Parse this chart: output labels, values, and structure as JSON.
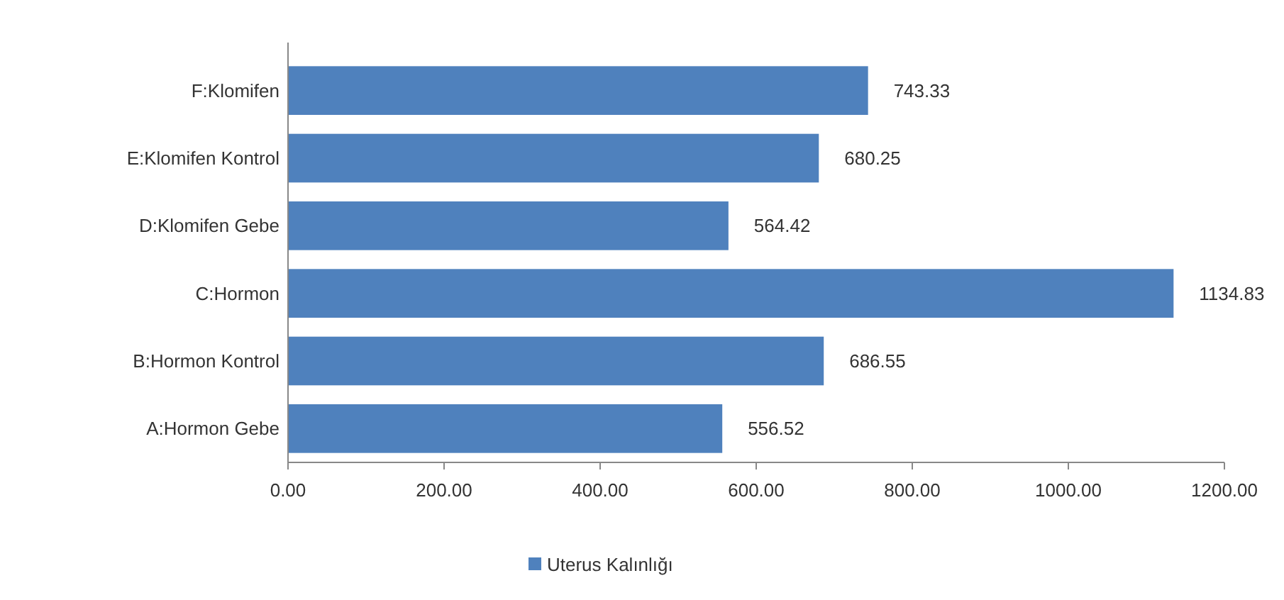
{
  "chart_data": {
    "type": "bar",
    "orientation": "horizontal",
    "categories": [
      "F:Klomifen",
      "E:Klomifen Kontrol",
      "D:Klomifen Gebe",
      "C:Hormon",
      "B:Hormon Kontrol",
      "A:Hormon Gebe"
    ],
    "series": [
      {
        "name": "Uterus Kalınlığı",
        "color": "#4f81bd",
        "values": [
          743.33,
          680.25,
          564.42,
          1134.83,
          686.55,
          556.52
        ]
      }
    ],
    "xlim": [
      0,
      1200
    ],
    "xticks": [
      {
        "value": 0,
        "label": "0.00"
      },
      {
        "value": 200,
        "label": "200.00"
      },
      {
        "value": 400,
        "label": "400.00"
      },
      {
        "value": 600,
        "label": "600.00"
      },
      {
        "value": 800,
        "label": "800.00"
      },
      {
        "value": 1000,
        "label": "1000.00"
      },
      {
        "value": 1200,
        "label": "1200.00"
      }
    ],
    "data_labels": true,
    "legend": "bottom",
    "grid": false
  }
}
